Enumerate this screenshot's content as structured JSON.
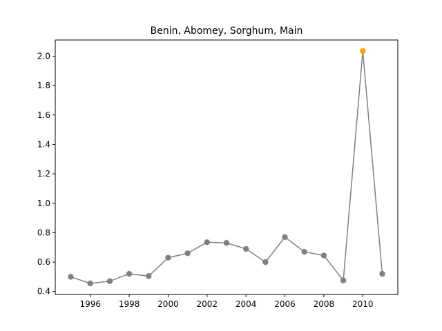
{
  "chart_data": {
    "type": "line",
    "title": "Benin, Abomey, Sorghum, Main",
    "xlabel": "",
    "ylabel": "",
    "x": [
      1995,
      1996,
      1997,
      1998,
      1999,
      2000,
      2001,
      2002,
      2003,
      2004,
      2005,
      2006,
      2007,
      2008,
      2009,
      2010,
      2011
    ],
    "series": [
      {
        "values": [
          0.5,
          0.455,
          0.47,
          0.52,
          0.505,
          0.63,
          0.66,
          0.735,
          0.73,
          0.69,
          0.6,
          0.77,
          0.67,
          0.645,
          0.475,
          2.035,
          0.52
        ],
        "color": "#808080"
      }
    ],
    "highlight": {
      "x": 2010,
      "value": 2.035,
      "color": "#ffa500"
    },
    "xlim": [
      1994.2,
      2011.8
    ],
    "ylim": [
      0.38,
      2.11
    ],
    "xticks": [
      1996,
      1998,
      2000,
      2002,
      2004,
      2006,
      2008,
      2010
    ],
    "xtick_labels": [
      "1996",
      "1998",
      "2000",
      "2002",
      "2004",
      "2006",
      "2008",
      "2010"
    ],
    "yticks": [
      0.4,
      0.6,
      0.8,
      1.0,
      1.2,
      1.4,
      1.6,
      1.8,
      2.0
    ],
    "ytick_labels": [
      "0.4",
      "0.6",
      "0.8",
      "1.0",
      "1.2",
      "1.4",
      "1.6",
      "1.8",
      "2.0"
    ],
    "grid": false,
    "legend": "none"
  }
}
